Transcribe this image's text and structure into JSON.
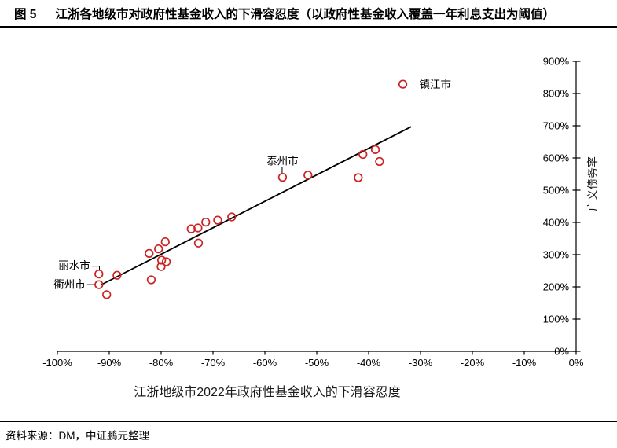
{
  "header": {
    "figure_label": "图 5",
    "title": "江浙各地级市对政府性基金收入的下滑容忍度（以政府性基金收入覆盖一年利息支出为阈值）"
  },
  "footer": {
    "source": "资料来源：DM，中证鹏元整理"
  },
  "chart_data": {
    "type": "scatter",
    "title": "",
    "xlabel": "江浙地级市2022年政府性基金收入的下滑容忍度",
    "ylabel": "广义债务率",
    "xlim": [
      -100,
      0
    ],
    "ylim": [
      0,
      900
    ],
    "x_ticks": [
      -100,
      -90,
      -80,
      -70,
      -60,
      -50,
      -40,
      -30,
      -20,
      -10,
      0
    ],
    "y_ticks": [
      0,
      100,
      200,
      300,
      400,
      500,
      600,
      700,
      800,
      900
    ],
    "tick_suffix": "%",
    "grid": false,
    "legend": "none",
    "y_axis_position": "right",
    "marker_color": "#CC2222",
    "trendline": {
      "x1": -91.5,
      "y1": 207,
      "x2": -31.8,
      "y2": 697,
      "color": "#000000"
    },
    "points": [
      {
        "x": -92.0,
        "y": 240,
        "label": "丽水市"
      },
      {
        "x": -92.0,
        "y": 207,
        "label": "衢州市"
      },
      {
        "x": -90.5,
        "y": 176
      },
      {
        "x": -88.5,
        "y": 236
      },
      {
        "x": -82.3,
        "y": 304
      },
      {
        "x": -81.9,
        "y": 222
      },
      {
        "x": -80.5,
        "y": 318
      },
      {
        "x": -80.0,
        "y": 263
      },
      {
        "x": -79.9,
        "y": 283
      },
      {
        "x": -79.2,
        "y": 340
      },
      {
        "x": -79.0,
        "y": 278
      },
      {
        "x": -74.2,
        "y": 380
      },
      {
        "x": -72.9,
        "y": 383
      },
      {
        "x": -72.8,
        "y": 336
      },
      {
        "x": -71.4,
        "y": 401
      },
      {
        "x": -69.1,
        "y": 407
      },
      {
        "x": -66.4,
        "y": 417
      },
      {
        "x": -56.6,
        "y": 540,
        "label": "泰州市"
      },
      {
        "x": -51.7,
        "y": 547
      },
      {
        "x": -42.0,
        "y": 539
      },
      {
        "x": -41.1,
        "y": 611
      },
      {
        "x": -38.7,
        "y": 626
      },
      {
        "x": -37.9,
        "y": 589
      },
      {
        "x": -33.4,
        "y": 829,
        "label": "镇江市"
      }
    ]
  }
}
